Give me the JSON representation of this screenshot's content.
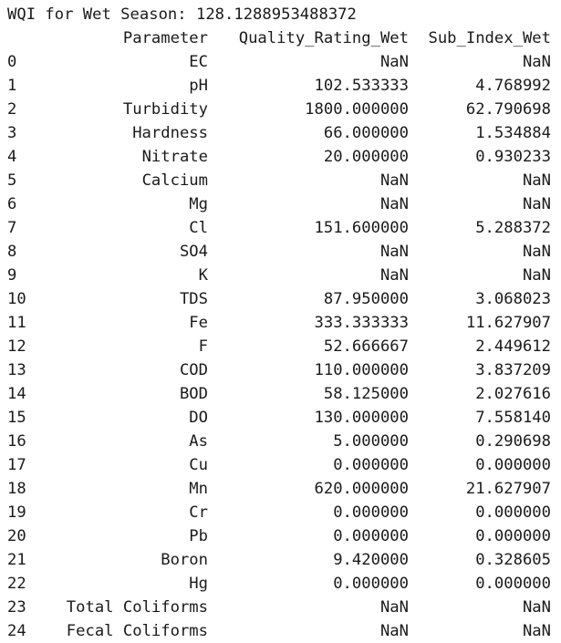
{
  "output": {
    "title_prefix": "WQI for Wet Season: ",
    "title_value": "128.1288953488372",
    "columns": {
      "index": "",
      "parameter": "Parameter",
      "quality_rating": "Quality_Rating_Wet",
      "sub_index": "Sub_Index_Wet"
    },
    "rows": [
      {
        "index": "0",
        "parameter": "EC",
        "quality_rating": "NaN",
        "sub_index": "NaN"
      },
      {
        "index": "1",
        "parameter": "pH",
        "quality_rating": "102.533333",
        "sub_index": "4.768992"
      },
      {
        "index": "2",
        "parameter": "Turbidity",
        "quality_rating": "1800.000000",
        "sub_index": "62.790698"
      },
      {
        "index": "3",
        "parameter": "Hardness",
        "quality_rating": "66.000000",
        "sub_index": "1.534884"
      },
      {
        "index": "4",
        "parameter": "Nitrate",
        "quality_rating": "20.000000",
        "sub_index": "0.930233"
      },
      {
        "index": "5",
        "parameter": "Calcium",
        "quality_rating": "NaN",
        "sub_index": "NaN"
      },
      {
        "index": "6",
        "parameter": "Mg",
        "quality_rating": "NaN",
        "sub_index": "NaN"
      },
      {
        "index": "7",
        "parameter": "Cl",
        "quality_rating": "151.600000",
        "sub_index": "5.288372"
      },
      {
        "index": "8",
        "parameter": "SO4",
        "quality_rating": "NaN",
        "sub_index": "NaN"
      },
      {
        "index": "9",
        "parameter": "K",
        "quality_rating": "NaN",
        "sub_index": "NaN"
      },
      {
        "index": "10",
        "parameter": "TDS",
        "quality_rating": "87.950000",
        "sub_index": "3.068023"
      },
      {
        "index": "11",
        "parameter": "Fe",
        "quality_rating": "333.333333",
        "sub_index": "11.627907"
      },
      {
        "index": "12",
        "parameter": "F",
        "quality_rating": "52.666667",
        "sub_index": "2.449612"
      },
      {
        "index": "13",
        "parameter": "COD",
        "quality_rating": "110.000000",
        "sub_index": "3.837209"
      },
      {
        "index": "14",
        "parameter": "BOD",
        "quality_rating": "58.125000",
        "sub_index": "2.027616"
      },
      {
        "index": "15",
        "parameter": "DO",
        "quality_rating": "130.000000",
        "sub_index": "7.558140"
      },
      {
        "index": "16",
        "parameter": "As",
        "quality_rating": "5.000000",
        "sub_index": "0.290698"
      },
      {
        "index": "17",
        "parameter": "Cu",
        "quality_rating": "0.000000",
        "sub_index": "0.000000"
      },
      {
        "index": "18",
        "parameter": "Mn",
        "quality_rating": "620.000000",
        "sub_index": "21.627907"
      },
      {
        "index": "19",
        "parameter": "Cr",
        "quality_rating": "0.000000",
        "sub_index": "0.000000"
      },
      {
        "index": "20",
        "parameter": "Pb",
        "quality_rating": "0.000000",
        "sub_index": "0.000000"
      },
      {
        "index": "21",
        "parameter": "Boron",
        "quality_rating": "9.420000",
        "sub_index": "0.328605"
      },
      {
        "index": "22",
        "parameter": "Hg",
        "quality_rating": "0.000000",
        "sub_index": "0.000000"
      },
      {
        "index": "23",
        "parameter": "Total Coliforms",
        "quality_rating": "NaN",
        "sub_index": "NaN"
      },
      {
        "index": "24",
        "parameter": "Fecal Coliforms",
        "quality_rating": "NaN",
        "sub_index": "NaN"
      }
    ]
  }
}
